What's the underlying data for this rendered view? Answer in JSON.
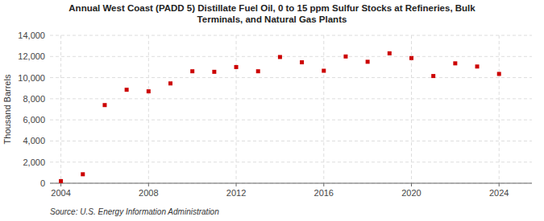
{
  "chart_data": {
    "type": "scatter",
    "title": "Annual West Coast (PADD 5) Distillate Fuel Oil, 0 to 15 ppm Sulfur Stocks at Refineries, Bulk\nTerminals, and Natural Gas Plants",
    "ylabel": "Thousand Barrels",
    "source": "Source: U.S. Energy Information Administration",
    "x": [
      2004,
      2005,
      2006,
      2007,
      2008,
      2009,
      2010,
      2011,
      2012,
      2013,
      2014,
      2015,
      2016,
      2017,
      2018,
      2019,
      2020,
      2021,
      2022,
      2023,
      2024
    ],
    "values": [
      200,
      850,
      7400,
      8850,
      8700,
      9450,
      10600,
      10550,
      11000,
      10600,
      11950,
      11450,
      10650,
      12000,
      11500,
      12300,
      11850,
      10150,
      11350,
      11050,
      10350
    ],
    "color": "#cc0000",
    "marker": "square",
    "xlim": [
      2003.5,
      2025.5
    ],
    "xticks": [
      2004,
      2008,
      2012,
      2016,
      2020,
      2024
    ],
    "ylim": [
      0,
      14000
    ],
    "yticks": [
      0,
      {
        "value": 2000,
        "label": "2,000"
      },
      {
        "value": 4000,
        "label": "4,000"
      },
      {
        "value": 6000,
        "label": "6,000"
      },
      {
        "value": 8000,
        "label": "8,000"
      },
      {
        "value": 10000,
        "label": "10,000"
      },
      {
        "value": 12000,
        "label": "12,000"
      },
      {
        "value": 14000,
        "label": "14,000"
      }
    ],
    "grid": true
  }
}
